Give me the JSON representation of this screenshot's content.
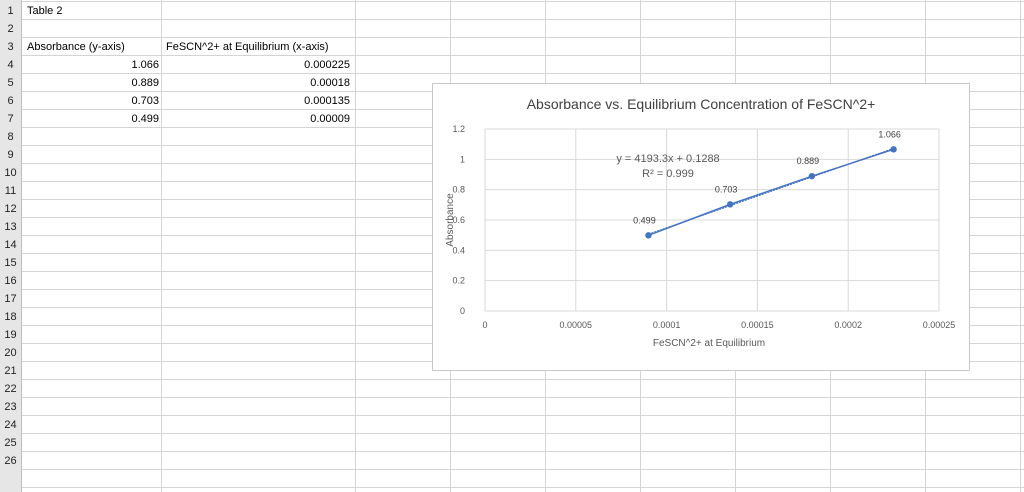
{
  "sheet": {
    "row_numbers": [
      "1",
      "2",
      "3",
      "4",
      "5",
      "6",
      "7",
      "8",
      "9",
      "10",
      "11",
      "12",
      "13",
      "14",
      "15",
      "16",
      "17",
      "18",
      "19",
      "20",
      "21",
      "22",
      "23",
      "24",
      "25",
      "26"
    ],
    "table_title": "Table 2",
    "col_a_header": "Absorbance (y-axis)",
    "col_b_header": "FeSCN^2+ at Equilibrium (x-axis)",
    "rows": [
      {
        "absorbance": "1.066",
        "conc": "0.000225"
      },
      {
        "absorbance": "0.889",
        "conc": "0.00018"
      },
      {
        "absorbance": "0.703",
        "conc": "0.000135"
      },
      {
        "absorbance": "0.499",
        "conc": "0.00009"
      }
    ]
  },
  "chart_data": {
    "type": "scatter",
    "title": "Absorbance vs. Equilibrium Concentration of FeSCN^2+",
    "xlabel": "FeSCN^2+ at Equilibrium",
    "ylabel": "Absorbance",
    "xlim": [
      0,
      0.00025
    ],
    "ylim": [
      0,
      1.2
    ],
    "xticks": [
      0,
      5e-05,
      0.0001,
      0.00015,
      0.0002,
      0.00025
    ],
    "xtick_labels": [
      "0",
      "0.00005",
      "0.0001",
      "0.00015",
      "0.0002",
      "0.00025"
    ],
    "yticks": [
      0,
      0.2,
      0.4,
      0.6,
      0.8,
      1,
      1.2
    ],
    "ytick_labels": [
      "0",
      "0.2",
      "0.4",
      "0.6",
      "0.8",
      "1",
      "1.2"
    ],
    "grid": true,
    "series": [
      {
        "x": [
          9e-05,
          0.000135,
          0.00018,
          0.000225
        ],
        "y": [
          0.499,
          0.703,
          0.889,
          1.066
        ],
        "labels": [
          "0.499",
          "0.703",
          "0.889",
          "1.066"
        ],
        "color": "#4472c4"
      }
    ],
    "trendline": {
      "slope": 4193.3,
      "intercept": 0.1288,
      "equation": "y = 4193.3x + 0.1288",
      "r_squared": "R² = 0.999"
    }
  }
}
